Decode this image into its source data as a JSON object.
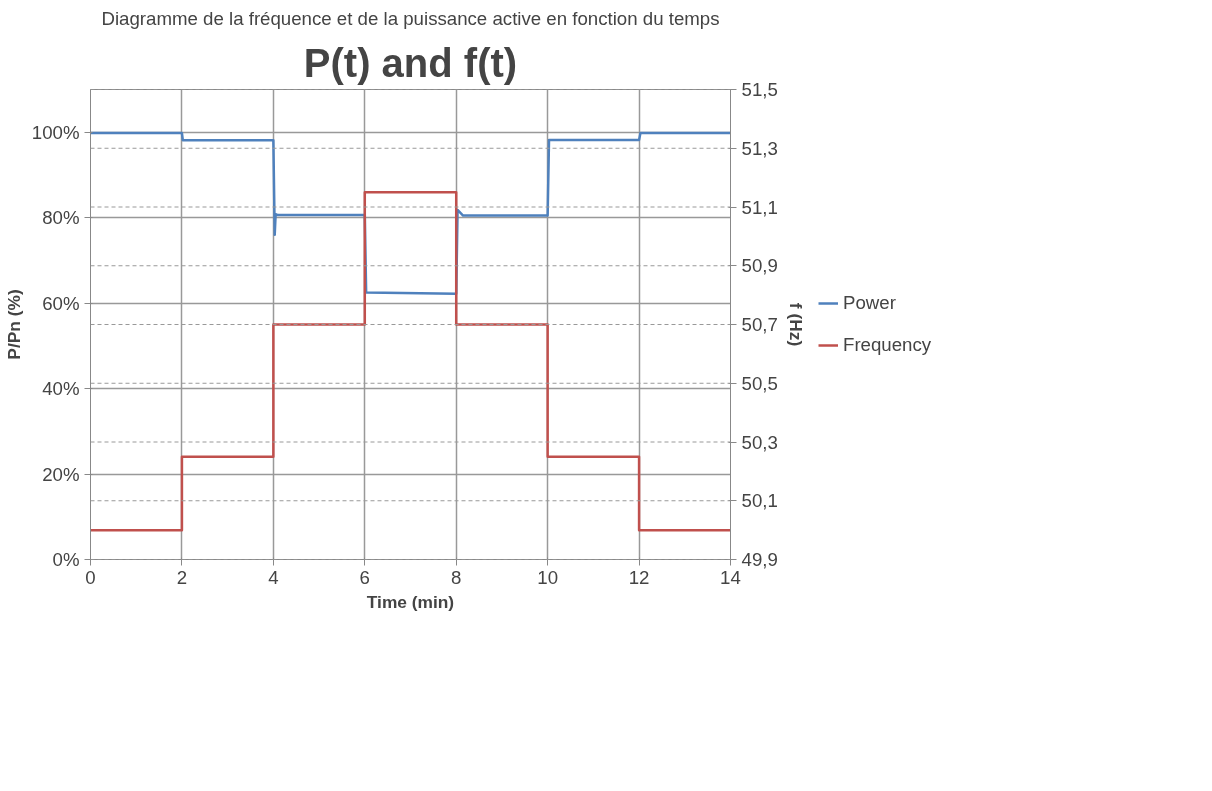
{
  "chart_data": {
    "type": "line",
    "title": "P(t) and f(t)",
    "subtitle": "Diagramme de la fréquence et de la puissance active en fonction du temps",
    "xlabel": "Time (min)",
    "ylabel": "P/Pn (%)",
    "y2label": "f (Hz)",
    "xlim": [
      0,
      14
    ],
    "xticks": [
      0,
      2,
      4,
      6,
      8,
      10,
      12,
      14
    ],
    "ylim": [
      0,
      110
    ],
    "yticks": [
      {
        "value": 0,
        "label": "0%"
      },
      {
        "value": 20,
        "label": "20%"
      },
      {
        "value": 40,
        "label": "40%"
      },
      {
        "value": 60,
        "label": "60%"
      },
      {
        "value": 80,
        "label": "80%"
      },
      {
        "value": 100,
        "label": "100%"
      }
    ],
    "y2lim": [
      49.9,
      51.5
    ],
    "y2ticks": [
      {
        "value": 49.9,
        "label": "49,9"
      },
      {
        "value": 50.1,
        "label": "50,1"
      },
      {
        "value": 50.3,
        "label": "50,3"
      },
      {
        "value": 50.5,
        "label": "50,5"
      },
      {
        "value": 50.7,
        "label": "50,7"
      },
      {
        "value": 50.9,
        "label": "50,9"
      },
      {
        "value": 51.1,
        "label": "51,1"
      },
      {
        "value": 51.3,
        "label": "51,3"
      },
      {
        "value": 51.5,
        "label": "51,5"
      }
    ],
    "grid": true,
    "legend": "right",
    "line_style": "solid",
    "series": [
      {
        "name": "Power",
        "color": "#4f81bd",
        "x": [
          0,
          2,
          2.02,
          4,
          4.03,
          4.05,
          4.1,
          6,
          6.03,
          8,
          8.03,
          8.15,
          10,
          10.03,
          12,
          12.03,
          14
        ],
        "values": [
          99.8,
          99.8,
          98.1,
          98.1,
          76,
          80.8,
          80.6,
          80.6,
          62.5,
          62.2,
          81.8,
          80.5,
          80.5,
          98.2,
          98.2,
          99.8,
          99.8
        ]
      },
      {
        "name": "Frequency",
        "color": "#c0504d",
        "axis": "y2",
        "x": [
          0,
          2,
          2,
          4,
          4,
          6,
          6,
          8,
          8,
          10,
          10,
          12,
          12,
          14
        ],
        "values": [
          50,
          50,
          50.25,
          50.25,
          50.7,
          50.7,
          51.15,
          51.15,
          50.7,
          50.7,
          50.25,
          50.25,
          50,
          50
        ]
      }
    ]
  }
}
